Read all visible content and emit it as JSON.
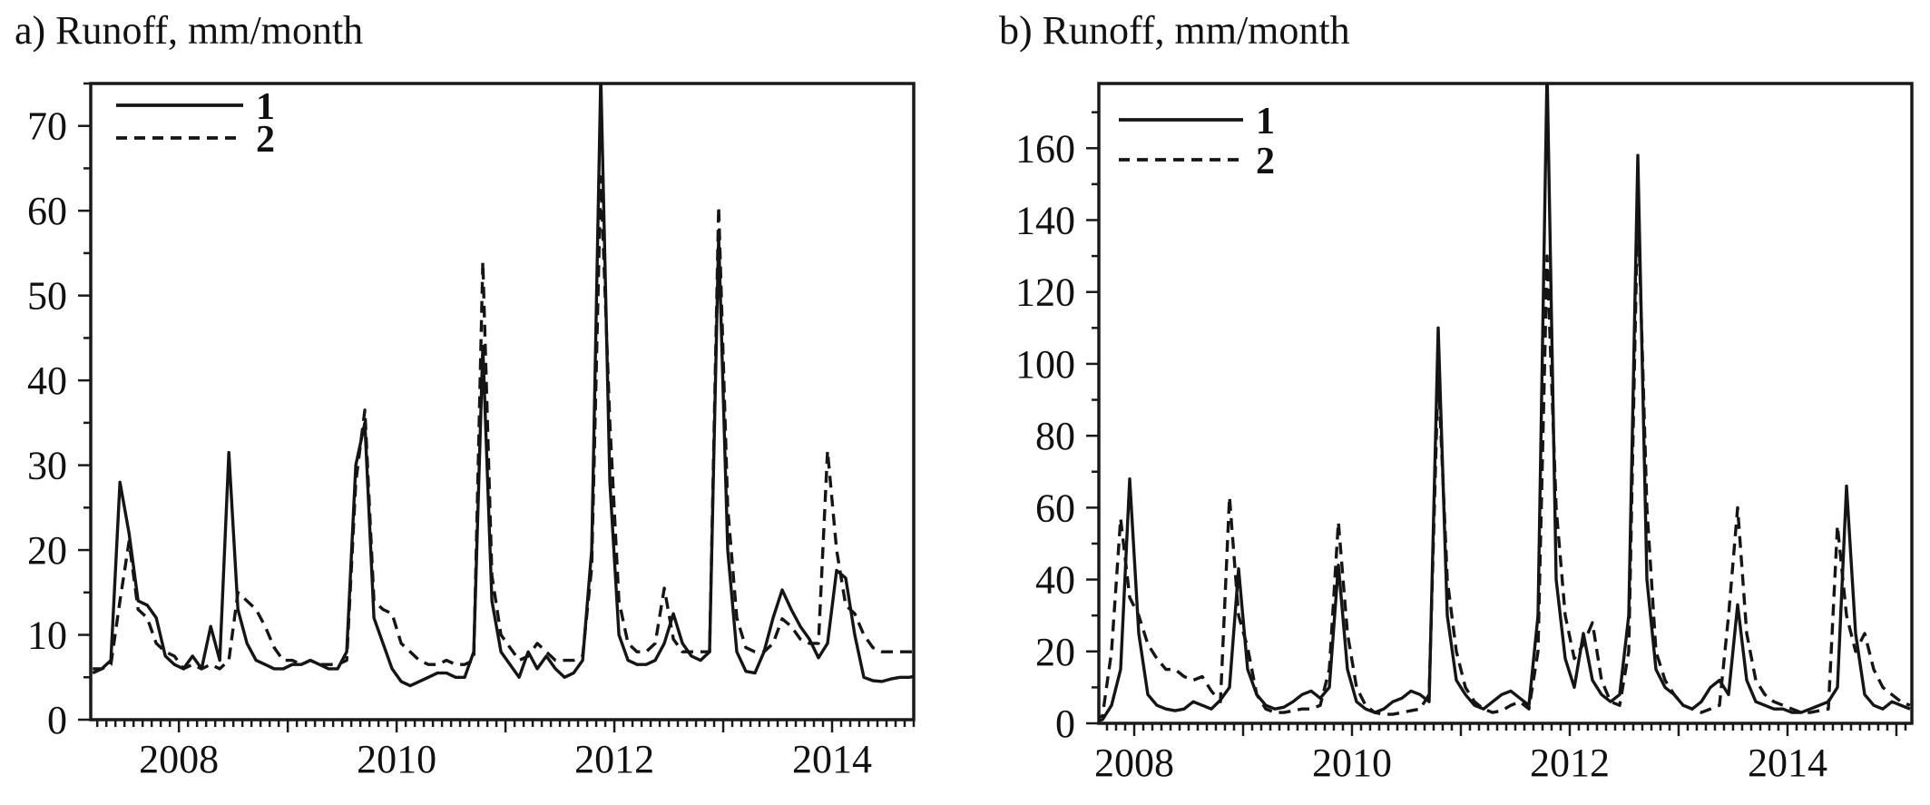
{
  "colors": {
    "line": "#151515",
    "frame": "#1a1a1a",
    "text": "#111111",
    "background": "#ffffff"
  },
  "chart_data": [
    {
      "id": "a",
      "type": "line",
      "title": "a) Runoff, mm/month",
      "ylabel": "Runoff, mm/month",
      "x_unit": "decimal_year_monthly",
      "x_start": 2007.2083,
      "x_step": 0.0833333,
      "x_range": [
        2007.19,
        2014.75
      ],
      "x_tick_years": [
        2008,
        2010,
        2012,
        2014
      ],
      "ylim": [
        0,
        75
      ],
      "y_ticks": [
        0,
        10,
        20,
        30,
        40,
        50,
        60,
        70
      ],
      "y_minor_step": 5,
      "grid": false,
      "legend_position": "top-left-inside",
      "legend": [
        {
          "label": "1",
          "style": "solid"
        },
        {
          "label": "2",
          "style": "dashed"
        }
      ],
      "series": [
        {
          "name": "1",
          "style": "solid",
          "values": [
            5.5,
            6,
            7,
            28,
            22,
            14,
            13.5,
            12,
            7.5,
            6.5,
            6,
            7.5,
            6,
            11,
            7,
            31.5,
            13,
            9,
            7,
            6.5,
            6,
            6,
            6.5,
            6.5,
            7,
            6.5,
            6,
            6,
            8,
            30,
            35,
            12,
            9,
            6,
            4.5,
            4,
            4.5,
            5,
            5.5,
            5.5,
            5,
            5,
            8,
            44,
            14,
            8,
            6.5,
            5,
            8,
            6,
            7.5,
            6,
            5,
            5.5,
            7,
            20,
            76,
            28,
            10,
            7,
            6.5,
            6.5,
            7,
            9,
            12.5,
            9,
            7.5,
            7,
            8,
            57,
            20,
            8,
            5.7,
            5.5,
            8,
            12,
            15.3,
            13,
            11,
            9.5,
            7.3,
            9,
            17.6,
            16.7,
            10,
            5,
            4.6,
            4.5,
            4.8,
            5,
            5,
            5.2,
            5.5,
            5.8
          ]
        },
        {
          "name": "2",
          "style": "dashed",
          "values": [
            6,
            6,
            6.5,
            14,
            21,
            13,
            12,
            9,
            8,
            7.5,
            6,
            6.5,
            6,
            6.5,
            6,
            7,
            15,
            14,
            13,
            11,
            8.5,
            7,
            7,
            6.5,
            7,
            6.5,
            6.5,
            6.5,
            7,
            28,
            36.5,
            14,
            13,
            12.5,
            9,
            8,
            7,
            6.5,
            6.5,
            7,
            6.5,
            6.5,
            7,
            54,
            17,
            10,
            8.5,
            7,
            7.5,
            9,
            8,
            7,
            7,
            7,
            7.5,
            18,
            64,
            35,
            14,
            9,
            8,
            8,
            9,
            15.5,
            9.5,
            8,
            8,
            8,
            8,
            60.5,
            25,
            12,
            8.5,
            8,
            8,
            9,
            11.9,
            11,
            9.5,
            9,
            9,
            31.7,
            20,
            13.5,
            12.5,
            10,
            8.5,
            8,
            8,
            8,
            8,
            8,
            8,
            8.2
          ]
        }
      ]
    },
    {
      "id": "b",
      "type": "line",
      "title": "b) Runoff, mm/month",
      "ylabel": "Runoff, mm/month",
      "x_unit": "decimal_year_monthly",
      "x_start": 2007.625,
      "x_step": 0.0833333,
      "x_range": [
        2007.675,
        2015.142
      ],
      "x_tick_years": [
        2008,
        2010,
        2012,
        2014
      ],
      "ylim": [
        0,
        178
      ],
      "y_ticks": [
        0,
        20,
        40,
        60,
        80,
        100,
        120,
        140,
        160
      ],
      "y_minor_step": 10,
      "grid": false,
      "legend_position": "top-left-inside",
      "legend": [
        {
          "label": "1",
          "style": "solid"
        },
        {
          "label": "2",
          "style": "dashed"
        }
      ],
      "series": [
        {
          "name": "1",
          "style": "solid",
          "values": [
            0.5,
            1,
            5,
            15,
            68,
            25,
            8,
            5,
            4,
            3.5,
            4,
            6,
            5,
            4,
            6.5,
            10,
            43,
            15,
            8,
            5,
            4,
            4.5,
            6,
            8,
            9,
            7,
            10,
            44,
            15,
            6,
            4,
            3,
            4,
            6,
            7,
            9,
            8,
            6,
            110,
            30,
            12,
            8,
            5,
            4,
            6,
            8,
            9,
            7,
            5,
            30,
            182,
            40,
            18,
            10,
            25,
            12,
            8,
            6,
            8,
            30,
            158,
            40,
            15,
            10,
            8,
            5,
            4,
            6,
            10,
            12,
            8,
            33,
            12,
            6,
            5,
            4,
            4,
            3,
            3,
            4,
            5,
            6,
            10,
            66,
            25,
            8,
            5,
            4,
            6,
            5,
            4
          ]
        },
        {
          "name": "2",
          "style": "dashed",
          "values": [
            1,
            2,
            20,
            57,
            35,
            30,
            22,
            18,
            15,
            15,
            13,
            12,
            13,
            9,
            6,
            63,
            30,
            21,
            8,
            4,
            3,
            3,
            3.5,
            4,
            4,
            5,
            15,
            56,
            25,
            10,
            5,
            3,
            2.5,
            2.5,
            3,
            3.5,
            4,
            8,
            98,
            40,
            20,
            10,
            6,
            4,
            3,
            3.5,
            5,
            6,
            4,
            20,
            130,
            60,
            30,
            18,
            22,
            28,
            12,
            6,
            5,
            20,
            146,
            60,
            20,
            12,
            8,
            5,
            4,
            3,
            4,
            5,
            30,
            60,
            25,
            12,
            8,
            6,
            5,
            4,
            3,
            3,
            3.5,
            4,
            55,
            30,
            20,
            25,
            15,
            10,
            8,
            6,
            5
          ]
        }
      ]
    }
  ]
}
